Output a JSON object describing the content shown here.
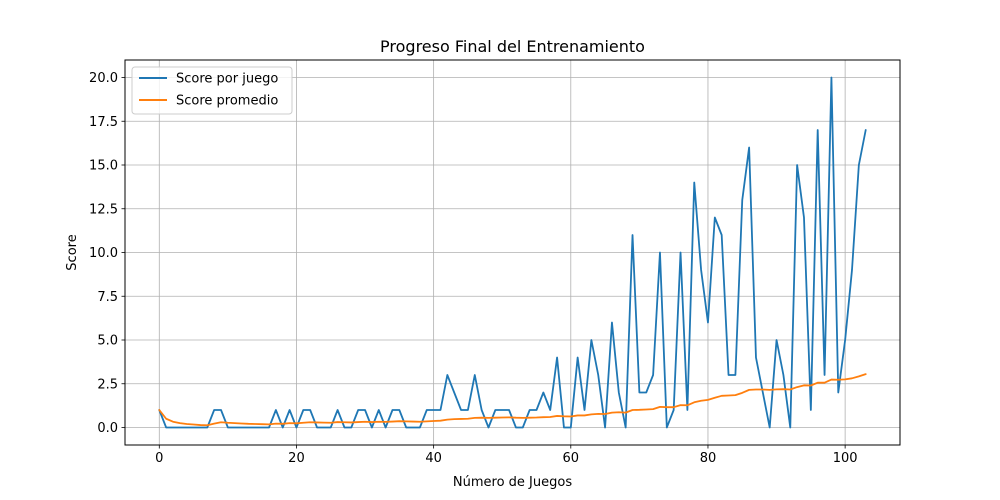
{
  "chart_data": {
    "type": "line",
    "title": "Progreso Final del Entrenamiento",
    "xlabel": "Número de Juegos",
    "ylabel": "Score",
    "xlim": [
      -5,
      108
    ],
    "ylim": [
      -1,
      21
    ],
    "xticks": [
      0,
      20,
      40,
      60,
      80,
      100
    ],
    "xtick_labels": [
      "0",
      "20",
      "40",
      "60",
      "80",
      "100"
    ],
    "yticks": [
      0,
      2.5,
      5,
      7.5,
      10,
      12.5,
      15,
      17.5,
      20
    ],
    "ytick_labels": [
      "0.0",
      "2.5",
      "5.0",
      "7.5",
      "10.0",
      "12.5",
      "15.0",
      "17.5",
      "20.0"
    ],
    "grid": true,
    "legend": "upper-left",
    "series": [
      {
        "name": "Score por juego",
        "color": "#1f77b4",
        "values": [
          1,
          0,
          0,
          0,
          0,
          0,
          0,
          0,
          1,
          1,
          0,
          0,
          0,
          0,
          0,
          0,
          0,
          1,
          0,
          1,
          0,
          1,
          1,
          0,
          0,
          0,
          1,
          0,
          0,
          1,
          1,
          0,
          1,
          0,
          1,
          1,
          0,
          0,
          0,
          1,
          1,
          1,
          3,
          2,
          1,
          1,
          3,
          1,
          0,
          1,
          1,
          1,
          0,
          0,
          1,
          1,
          2,
          1,
          4,
          0,
          0,
          4,
          1,
          5,
          3,
          0,
          6,
          2,
          0,
          11,
          2,
          2,
          3,
          10,
          0,
          1,
          10,
          1,
          14,
          9,
          6,
          12,
          11,
          3,
          3,
          13,
          16,
          4,
          2,
          0,
          5,
          3,
          0,
          15,
          12,
          1,
          17,
          3,
          20,
          2,
          5,
          9,
          15,
          17
        ]
      },
      {
        "name": "Score promedio",
        "color": "#ff7f0e",
        "values": [
          1.0,
          0.5,
          0.33,
          0.25,
          0.2,
          0.17,
          0.14,
          0.13,
          0.22,
          0.3,
          0.27,
          0.25,
          0.23,
          0.21,
          0.2,
          0.19,
          0.18,
          0.22,
          0.21,
          0.25,
          0.24,
          0.27,
          0.3,
          0.29,
          0.28,
          0.27,
          0.31,
          0.3,
          0.29,
          0.31,
          0.33,
          0.31,
          0.33,
          0.32,
          0.34,
          0.36,
          0.35,
          0.34,
          0.33,
          0.35,
          0.37,
          0.39,
          0.45,
          0.48,
          0.49,
          0.5,
          0.55,
          0.56,
          0.55,
          0.56,
          0.57,
          0.58,
          0.56,
          0.55,
          0.56,
          0.57,
          0.59,
          0.6,
          0.66,
          0.64,
          0.63,
          0.69,
          0.69,
          0.75,
          0.78,
          0.77,
          0.85,
          0.87,
          0.85,
          1.0,
          1.01,
          1.03,
          1.05,
          1.18,
          1.16,
          1.16,
          1.28,
          1.27,
          1.44,
          1.53,
          1.58,
          1.7,
          1.81,
          1.83,
          1.85,
          1.98,
          2.15,
          2.17,
          2.17,
          2.15,
          2.18,
          2.19,
          2.17,
          2.31,
          2.41,
          2.4,
          2.56,
          2.56,
          2.74,
          2.73,
          2.75,
          2.81,
          2.92,
          3.05
        ]
      }
    ]
  }
}
